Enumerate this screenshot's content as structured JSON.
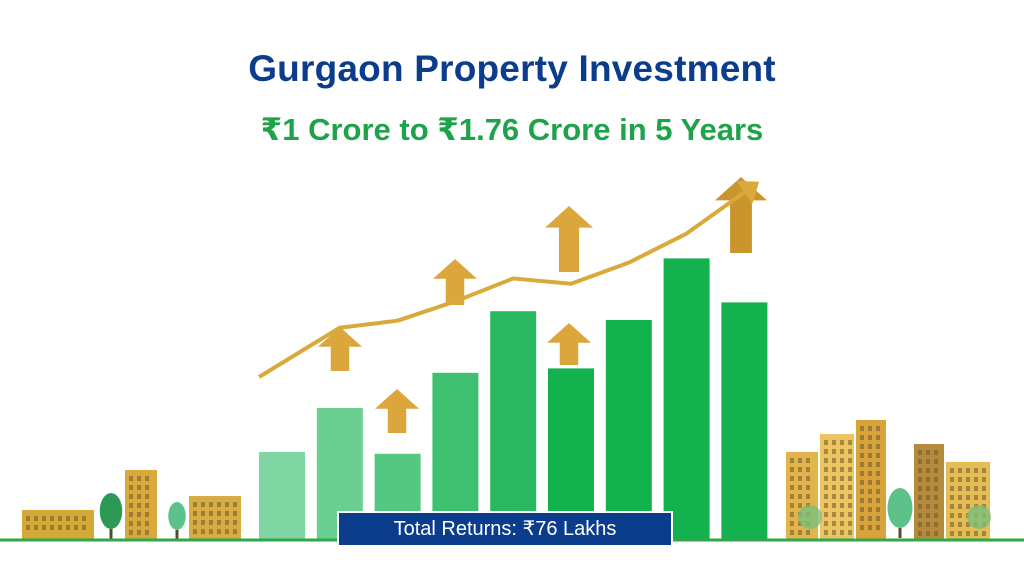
{
  "header": {
    "title": "Gurgaon Property Investment",
    "subtitle": "₹1 Crore to ₹1.76 Crore in 5 Years"
  },
  "badge": {
    "text": "Total Returns: ₹76 Lakhs"
  },
  "colors": {
    "title": "#0c3c8c",
    "subtitle": "#1fa34a",
    "bar_light": "#7fd6a2",
    "bar_dark": "#14b14f",
    "trend": "#d9a93a",
    "arrow": "#dba73c",
    "badge": "#0c3c8c"
  },
  "chart_data": {
    "type": "bar",
    "values": [
      1.0,
      1.5,
      0.98,
      1.9,
      2.6,
      1.95,
      2.5,
      3.2,
      2.7
    ],
    "trend_line": [
      1.0,
      1.56,
      1.64,
      1.86,
      2.12,
      2.06,
      2.3,
      2.63,
      3.1
    ],
    "growth_arrows": "upward",
    "ylim": [
      0,
      3.4
    ]
  }
}
